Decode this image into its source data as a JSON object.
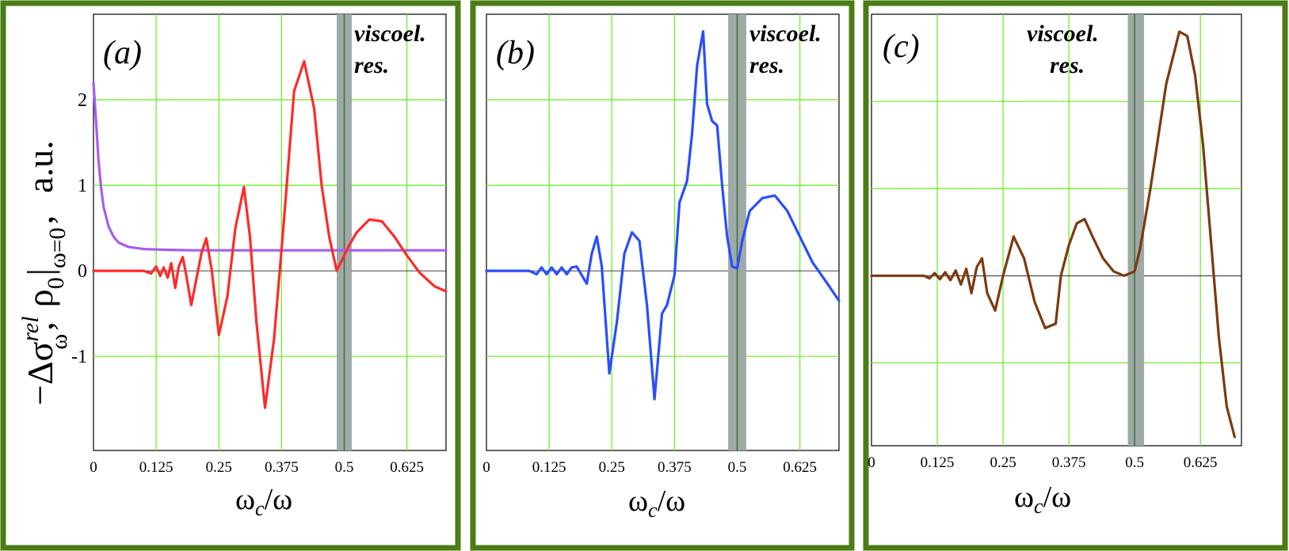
{
  "y_axis_label": {
    "prefix": "−Δσ",
    "sigma_sup": "rel",
    "sigma_sub": "ω",
    "comma1": ",",
    "rho": "ρ",
    "rho_sub": "0",
    "eval_sub": "ω=0",
    "comma2": ",",
    "units": "a.u."
  },
  "colors": {
    "frame": "#4a7d15",
    "grid": "#6ef02a",
    "resonance_band": "#9eaaa6",
    "resonance_line": "#3f6b3a",
    "panel_a": "#ff2a2a",
    "panel_a_rho": "#a85cf0",
    "panel_b": "#2a4dff",
    "panel_c": "#7a3a10"
  },
  "chart_data": [
    {
      "type": "line",
      "panel": "a",
      "label": "(a)",
      "annotation": [
        "viscoel.",
        "res."
      ],
      "resonance_x": 0.5,
      "resonance_band": [
        0.485,
        0.515
      ],
      "xlabel": "ωc/ω",
      "xlabel_main": "ω",
      "xlabel_sub": "c",
      "xlabel_tail": "/ω",
      "xlim": [
        0,
        0.703
      ],
      "ylim": [
        -2.1,
        3.0
      ],
      "x_ticks": [
        "0",
        "0.125",
        "0.25",
        "0.375",
        "0.5",
        "0.625"
      ],
      "x_tick_values": [
        0,
        0.125,
        0.25,
        0.375,
        0.5,
        0.625
      ],
      "y_ticks": [
        "2",
        "1",
        "0",
        "-1"
      ],
      "y_tick_values": [
        2,
        1,
        0,
        -1
      ],
      "y_grid": [
        2,
        1,
        0,
        -1
      ],
      "series": [
        {
          "name": "rho0",
          "color": "#a85cf0",
          "x": [
            0,
            0.005,
            0.01,
            0.015,
            0.02,
            0.03,
            0.04,
            0.05,
            0.07,
            0.1,
            0.15,
            0.2,
            0.3,
            0.4,
            0.5,
            0.6,
            0.703
          ],
          "y": [
            2.2,
            1.75,
            1.3,
            0.98,
            0.75,
            0.52,
            0.4,
            0.33,
            0.28,
            0.255,
            0.245,
            0.24,
            0.24,
            0.24,
            0.24,
            0.24,
            0.24
          ]
        },
        {
          "name": "-dsigma_rel",
          "color": "#ff2a2a",
          "x": [
            0,
            0.1,
            0.115,
            0.125,
            0.133,
            0.14,
            0.148,
            0.155,
            0.163,
            0.17,
            0.178,
            0.185,
            0.195,
            0.205,
            0.215,
            0.225,
            0.236,
            0.25,
            0.267,
            0.283,
            0.3,
            0.312,
            0.325,
            0.342,
            0.36,
            0.38,
            0.4,
            0.42,
            0.44,
            0.455,
            0.47,
            0.485,
            0.5,
            0.51,
            0.525,
            0.55,
            0.575,
            0.6,
            0.625,
            0.65,
            0.68,
            0.703
          ],
          "y": [
            0,
            0,
            -0.03,
            0.05,
            -0.06,
            0.04,
            -0.08,
            0.09,
            -0.2,
            0.05,
            0.16,
            -0.05,
            -0.4,
            -0.1,
            0.2,
            0.38,
            0.0,
            -0.75,
            -0.3,
            0.5,
            0.98,
            0.4,
            -0.6,
            -1.6,
            -0.8,
            0.6,
            2.1,
            2.45,
            1.9,
            1.0,
            0.4,
            0.0,
            0.18,
            0.3,
            0.45,
            0.6,
            0.58,
            0.4,
            0.18,
            -0.02,
            -0.18,
            -0.24
          ]
        }
      ]
    },
    {
      "type": "line",
      "panel": "b",
      "label": "(b)",
      "annotation": [
        "viscoel.",
        "res."
      ],
      "resonance_x": 0.5,
      "resonance_band": [
        0.482,
        0.518
      ],
      "xlabel": "ωc/ω",
      "xlabel_main": "ω",
      "xlabel_sub": "c",
      "xlabel_tail": "/ω",
      "xlim": [
        0,
        0.703
      ],
      "ylim": [
        -2.1,
        3.0
      ],
      "x_ticks": [
        "0",
        "0.125",
        "0.25",
        "0.375",
        "0.5",
        "0.625"
      ],
      "x_tick_values": [
        0,
        0.125,
        0.25,
        0.375,
        0.5,
        0.625
      ],
      "y_ticks": [],
      "y_tick_values": [],
      "y_grid": [
        2,
        1,
        0,
        -1
      ],
      "series": [
        {
          "name": "-dsigma_rel",
          "color": "#2a4dff",
          "x": [
            0,
            0.085,
            0.1,
            0.11,
            0.12,
            0.13,
            0.14,
            0.15,
            0.16,
            0.17,
            0.18,
            0.2,
            0.21,
            0.22,
            0.23,
            0.245,
            0.26,
            0.275,
            0.29,
            0.305,
            0.32,
            0.335,
            0.35,
            0.36,
            0.375,
            0.385,
            0.4,
            0.41,
            0.42,
            0.432,
            0.44,
            0.45,
            0.46,
            0.47,
            0.48,
            0.49,
            0.5,
            0.51,
            0.525,
            0.55,
            0.575,
            0.6,
            0.625,
            0.65,
            0.68,
            0.703
          ],
          "y": [
            0,
            0,
            -0.04,
            0.04,
            -0.04,
            0.04,
            -0.04,
            0.04,
            -0.04,
            0.04,
            0.05,
            -0.15,
            0.2,
            0.4,
            0.05,
            -1.2,
            -0.6,
            0.2,
            0.45,
            0.35,
            -0.4,
            -1.5,
            -0.5,
            -0.4,
            -0.05,
            0.8,
            1.05,
            1.6,
            2.4,
            2.8,
            1.95,
            1.75,
            1.7,
            1.0,
            0.4,
            0.05,
            0.03,
            0.35,
            0.7,
            0.85,
            0.88,
            0.7,
            0.4,
            0.1,
            -0.15,
            -0.35
          ]
        }
      ]
    },
    {
      "type": "line",
      "panel": "c",
      "label": "(c)",
      "annotation": [
        "viscoel.",
        "res."
      ],
      "resonance_x": 0.5,
      "resonance_band": [
        0.487,
        0.518
      ],
      "xlabel": "ωc/ω",
      "xlabel_main": "ω",
      "xlabel_sub": "c",
      "xlabel_tail": "/ω",
      "xlim": [
        0,
        0.703
      ],
      "ylim": [
        -1.95,
        3.0
      ],
      "x_ticks": [
        "0",
        "0.125",
        "0.25",
        "0.375",
        "0.5",
        "0.625"
      ],
      "x_tick_values": [
        0,
        0.125,
        0.25,
        0.375,
        0.5,
        0.625
      ],
      "y_ticks": [],
      "y_tick_values": [],
      "y_grid": [
        2,
        1,
        0,
        -1
      ],
      "series": [
        {
          "name": "-dsigma_rel",
          "color": "#7a3a10",
          "x": [
            0,
            0.1,
            0.11,
            0.12,
            0.13,
            0.14,
            0.15,
            0.16,
            0.17,
            0.18,
            0.19,
            0.2,
            0.21,
            0.22,
            0.235,
            0.25,
            0.27,
            0.29,
            0.31,
            0.33,
            0.35,
            0.36,
            0.375,
            0.39,
            0.405,
            0.42,
            0.44,
            0.46,
            0.48,
            0.5,
            0.51,
            0.53,
            0.56,
            0.585,
            0.6,
            0.615,
            0.63,
            0.645,
            0.66,
            0.675,
            0.69
          ],
          "y": [
            0,
            0,
            -0.03,
            0.03,
            -0.04,
            0.04,
            -0.05,
            0.06,
            -0.1,
            0.08,
            -0.2,
            0.1,
            0.2,
            -0.2,
            -0.4,
            0.0,
            0.45,
            0.2,
            -0.3,
            -0.6,
            -0.55,
            0.0,
            0.35,
            0.6,
            0.65,
            0.45,
            0.2,
            0.05,
            0.0,
            0.05,
            0.3,
            1.0,
            2.2,
            2.8,
            2.75,
            2.3,
            1.5,
            0.4,
            -0.7,
            -1.5,
            -1.85
          ]
        }
      ]
    }
  ]
}
